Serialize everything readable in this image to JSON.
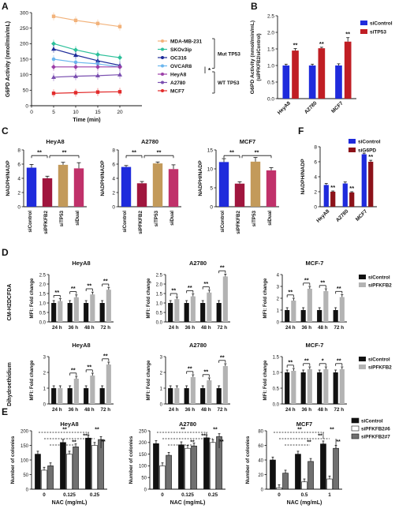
{
  "figure": {
    "panel_letters": [
      "A",
      "B",
      "C",
      "D",
      "E",
      "F"
    ]
  },
  "colors": {
    "mda": "#f2b27a",
    "skov": "#2dc09a",
    "oc316": "#1d2b9a",
    "ovcar8": "#6ab6ee",
    "heya8": "#9c3fa8",
    "a2780": "#7a4fb0",
    "mcf7": "#e22b2b",
    "blue": "#1f2bdc",
    "red": "#c01e24",
    "crimson": "#a0163e",
    "tan": "#c39a5a",
    "plum": "#c0316a",
    "darkred": "#8c1219",
    "black": "#111111",
    "grey": "#b3b3b3",
    "white": "#ffffff",
    "darkgrey": "#707070"
  },
  "chart_data": [
    {
      "panel": "A",
      "type": "line",
      "xlabel": "Time (min)",
      "ylabel": "G6PD Activity (nmol/min/mL)",
      "x": [
        5,
        10,
        15,
        20
      ],
      "xlim": [
        0,
        25
      ],
      "xticks": [
        0,
        5,
        10,
        15,
        20
      ],
      "ylim": [
        0,
        300
      ],
      "yticks": [
        0,
        50,
        100,
        150,
        200,
        250,
        300
      ],
      "series": [
        {
          "name": "MDA-MB-231",
          "color": "mda",
          "marker": "square",
          "values": [
            288,
            275,
            265,
            255
          ]
        },
        {
          "name": "SKOv3ip",
          "color": "skov",
          "marker": "diamond",
          "values": [
            200,
            180,
            165,
            155
          ]
        },
        {
          "name": "OC316",
          "color": "oc316",
          "marker": "triangle",
          "values": [
            183,
            163,
            145,
            130
          ]
        },
        {
          "name": "OVCAR8",
          "color": "ovcar8",
          "marker": "circle",
          "values": [
            150,
            140,
            135,
            125
          ]
        },
        {
          "name": "HeyA8",
          "color": "heya8",
          "marker": "diamond",
          "values": [
            125,
            125,
            125,
            125
          ]
        },
        {
          "name": "A2780",
          "color": "a2780",
          "marker": "triangle",
          "values": [
            92,
            95,
            97,
            100
          ]
        },
        {
          "name": "MCF7",
          "color": "mcf7",
          "marker": "square",
          "values": [
            40,
            42,
            44,
            45
          ]
        }
      ],
      "groups": [
        {
          "label": "Mut TP53",
          "members": [
            "MDA-MB-231",
            "SKOv3ip",
            "OC316",
            "OVCAR8"
          ]
        },
        {
          "label": "WT TP53",
          "members": [
            "HeyA8",
            "A2780",
            "MCF7"
          ]
        }
      ],
      "annotation": "*"
    },
    {
      "panel": "B",
      "type": "bar",
      "ylabel": "G6PD Activity (nmol/min/mL)",
      "ylabel2": "(siPFKFB2/siControl)",
      "categories": [
        "HeyA8",
        "A2780",
        "MCF7"
      ],
      "ylim": [
        0,
        2.5
      ],
      "yticks": [
        0.0,
        0.5,
        1.0,
        1.5,
        2.0,
        2.5
      ],
      "series": [
        {
          "name": "siControl",
          "color": "blue",
          "values": [
            1.0,
            1.0,
            1.0
          ],
          "errors": [
            0.04,
            0.04,
            0.05
          ]
        },
        {
          "name": "siTP53",
          "color": "red",
          "values": [
            1.45,
            1.52,
            1.72
          ],
          "errors": [
            0.06,
            0.03,
            0.12
          ]
        }
      ],
      "sig": [
        "**",
        "**",
        "**"
      ]
    },
    {
      "panel": "C-HeyA8",
      "type": "bar",
      "title": "HeyA8",
      "ylabel": "NADPH/NADP",
      "categories": [
        "siControl",
        "siPFKFB2",
        "siTP53",
        "siDual"
      ],
      "colors": [
        "blue",
        "crimson",
        "tan",
        "plum"
      ],
      "values": [
        5.5,
        4.0,
        5.9,
        5.4
      ],
      "errors": [
        0.45,
        0.3,
        0.35,
        0.8
      ],
      "ylim": [
        0,
        8
      ],
      "yticks": [
        0,
        2,
        4,
        6,
        8
      ],
      "brackets": [
        {
          "from": 0,
          "to": 1,
          "label": "**"
        },
        {
          "from": 1,
          "to": 3,
          "label": "**"
        }
      ]
    },
    {
      "panel": "C-A2780",
      "type": "bar",
      "title": "A2780",
      "ylabel": "NADPH/NADP",
      "categories": [
        "siControl",
        "siPFKFB2",
        "siTP53",
        "siDual"
      ],
      "colors": [
        "blue",
        "crimson",
        "tan",
        "plum"
      ],
      "values": [
        5.6,
        3.3,
        6.1,
        5.3
      ],
      "errors": [
        0.2,
        0.25,
        0.2,
        0.6
      ],
      "ylim": [
        0,
        8
      ],
      "yticks": [
        0,
        2,
        4,
        6,
        8
      ],
      "brackets": [
        {
          "from": 0,
          "to": 1,
          "label": "**"
        },
        {
          "from": 1,
          "to": 3,
          "label": "**"
        }
      ]
    },
    {
      "panel": "C-MCF7",
      "type": "bar",
      "title": "MCF7",
      "ylabel": "NADPH/NADP",
      "categories": [
        "siControl",
        "siPFKFB2",
        "siTP53",
        "siDual"
      ],
      "colors": [
        "blue",
        "crimson",
        "tan",
        "plum"
      ],
      "values": [
        11.8,
        6.1,
        11.9,
        9.6
      ],
      "errors": [
        0.9,
        0.5,
        1.1,
        0.7
      ],
      "ylim": [
        0,
        15
      ],
      "yticks": [
        0,
        5,
        10,
        15
      ],
      "brackets": [
        {
          "from": 0,
          "to": 1,
          "label": "**"
        },
        {
          "from": 1,
          "to": 3,
          "label": "**"
        }
      ]
    },
    {
      "panel": "D",
      "type": "bar",
      "ylabel": "NADPH/NADP",
      "categories": [
        "HeyA8",
        "A2780",
        "MCF7"
      ],
      "ylim": [
        0,
        8
      ],
      "yticks": [
        0,
        2,
        4,
        6,
        8
      ],
      "series": [
        {
          "name": "siControl",
          "color": "blue",
          "values": [
            2.9,
            3.1,
            7.0
          ],
          "errors": [
            0.2,
            0.2,
            0.15
          ]
        },
        {
          "name": "siG6PD",
          "color": "darkred",
          "values": [
            2.0,
            1.9,
            6.0
          ],
          "errors": [
            0.1,
            0.1,
            0.2
          ]
        }
      ],
      "sig": [
        "**",
        "**",
        "**"
      ]
    },
    {
      "panel": "E-row1",
      "type": "bar",
      "row_label": "CM-H2DCFDA",
      "ylabel": "MFI: Fold change",
      "categories": [
        "24 h",
        "36 h",
        "48 h",
        "72 h"
      ],
      "series_names": [
        "siControl",
        "siPFKFB2"
      ],
      "series_colors": [
        "black",
        "grey"
      ],
      "charts": [
        {
          "title": "HeyA8",
          "ylim": [
            0,
            2.5
          ],
          "yticks": [
            0.0,
            0.5,
            1.0,
            1.5,
            2.0,
            2.5
          ],
          "control": [
            1.0,
            1.0,
            1.0,
            1.0
          ],
          "treated": [
            1.1,
            1.3,
            1.45,
            1.7
          ],
          "sig": [
            "**",
            "**",
            "**",
            "**"
          ]
        },
        {
          "title": "A2780",
          "ylim": [
            0,
            2.5
          ],
          "yticks": [
            0.0,
            0.5,
            1.0,
            1.5,
            2.0,
            2.5
          ],
          "control": [
            1.0,
            1.0,
            1.0,
            1.0
          ],
          "treated": [
            1.2,
            1.35,
            1.55,
            2.4
          ],
          "sig": [
            "**",
            "**",
            "**",
            "**"
          ]
        },
        {
          "title": "MCF-7",
          "ylim": [
            0,
            4
          ],
          "yticks": [
            0,
            1,
            2,
            3,
            4
          ],
          "control": [
            1.0,
            1.0,
            1.0,
            1.0
          ],
          "treated": [
            1.8,
            2.8,
            2.6,
            2.1
          ],
          "sig": [
            "**",
            "**",
            "**",
            "**"
          ]
        }
      ]
    },
    {
      "panel": "E-row2",
      "type": "bar",
      "row_label": "Dihydroethidium",
      "ylabel": "MFI: Fold change",
      "categories": [
        "24 h",
        "36 h",
        "48 h",
        "72 h"
      ],
      "series_names": [
        "siControl",
        "siPFKFB2"
      ],
      "series_colors": [
        "black",
        "grey"
      ],
      "charts": [
        {
          "title": "HeyA8",
          "ylim": [
            0,
            3
          ],
          "yticks": [
            0,
            1,
            2,
            3
          ],
          "control": [
            1.0,
            1.0,
            1.0,
            1.0
          ],
          "treated": [
            1.0,
            1.6,
            1.8,
            2.5
          ],
          "sig": [
            "",
            "**",
            "**",
            "**"
          ]
        },
        {
          "title": "A2780",
          "ylim": [
            0,
            3
          ],
          "yticks": [
            0,
            1,
            2,
            3
          ],
          "control": [
            1.0,
            1.0,
            1.0,
            1.0
          ],
          "treated": [
            1.0,
            1.7,
            1.5,
            2.4
          ],
          "sig": [
            "",
            "**",
            "**",
            "**"
          ]
        },
        {
          "title": "MCF-7",
          "ylim": [
            0,
            1.5
          ],
          "yticks": [
            0.0,
            0.5,
            1.0,
            1.5
          ],
          "control": [
            1.0,
            1.0,
            1.0,
            1.0
          ],
          "treated": [
            1.05,
            1.1,
            1.1,
            1.1
          ],
          "sig": [
            "**",
            "**",
            "*",
            "**"
          ]
        }
      ]
    },
    {
      "panel": "F",
      "type": "bar",
      "ylabel": "Number of colonies",
      "xlabel": "NAC (mg/mL)",
      "series_names": [
        "siControl",
        "siPFKFB2#6",
        "siPFKFB2#7"
      ],
      "series_colors": [
        "black",
        "white",
        "darkgrey"
      ],
      "charts": [
        {
          "title": "HeyA8",
          "categories": [
            "0",
            "0.125",
            "0.25"
          ],
          "ylim": [
            0,
            200
          ],
          "yticks": [
            0,
            50,
            100,
            150,
            200
          ],
          "values": [
            [
              120,
              65,
              80
            ],
            [
              160,
              120,
              145
            ],
            [
              175,
              150,
              170
            ]
          ],
          "annotations": [
            "**",
            "**",
            "**",
            "**",
            "**"
          ]
        },
        {
          "title": "A2780",
          "categories": [
            "0",
            "0.125",
            "0.25"
          ],
          "ylim": [
            0,
            250
          ],
          "yticks": [
            0,
            50,
            100,
            150,
            200,
            250
          ],
          "values": [
            [
              195,
              100,
              145
            ],
            [
              190,
              175,
              185
            ],
            [
              220,
              200,
              225
            ]
          ],
          "annotations": [
            "**",
            "**",
            "**",
            "**",
            "**"
          ]
        },
        {
          "title": "MCF7",
          "categories": [
            "0",
            "0.5",
            "1"
          ],
          "ylim": [
            0,
            80
          ],
          "yticks": [
            0,
            20,
            40,
            60,
            80
          ],
          "values": [
            [
              40,
              2,
              22
            ],
            [
              48,
              10,
              38
            ],
            [
              62,
              14,
              56
            ]
          ],
          "annotations": [
            "**",
            "**",
            "**",
            "**",
            "**"
          ]
        }
      ]
    }
  ]
}
